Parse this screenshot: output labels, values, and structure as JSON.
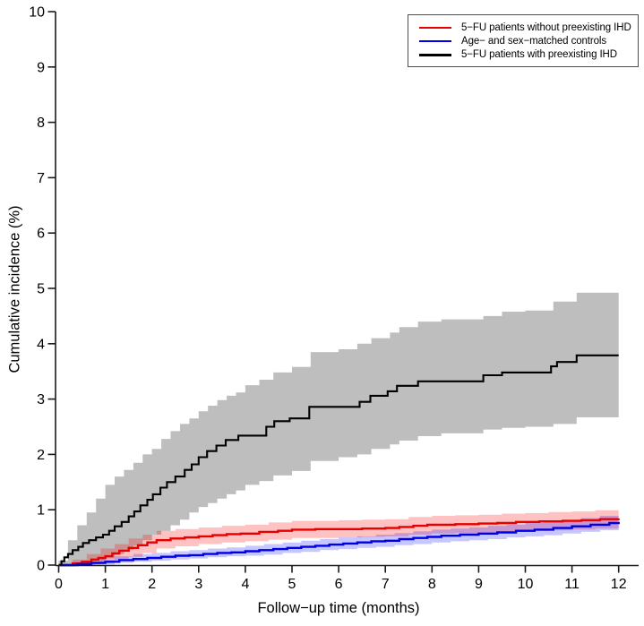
{
  "figure_title": "",
  "chart_data": {
    "type": "line",
    "subtype": "step-cumulative-incidence",
    "title": "",
    "xlabel": "Follow−up time (months)",
    "ylabel": "Cumulative incidence (%)",
    "xlim": [
      0,
      12
    ],
    "ylim": [
      0,
      10
    ],
    "x_ticks": [
      0,
      1,
      2,
      3,
      4,
      5,
      6,
      7,
      8,
      9,
      10,
      11,
      12
    ],
    "y_ticks": [
      0,
      1,
      2,
      3,
      4,
      5,
      6,
      7,
      8,
      9,
      10
    ],
    "grid": false,
    "legend_position": "top-right",
    "legend_border_color": "#4d4d4d",
    "axis_color": "#1a1a1a",
    "series": [
      {
        "key": "red",
        "name": "5−FU patients without preexisting IHD",
        "color": "#e60000",
        "band_color": "rgba(255,0,0,0.24)",
        "line_width": 2.4,
        "points": [
          [
            0,
            0
          ],
          [
            0.3,
            0.03
          ],
          [
            0.5,
            0.06
          ],
          [
            0.7,
            0.1
          ],
          [
            0.85,
            0.13
          ],
          [
            1.0,
            0.16
          ],
          [
            1.15,
            0.21
          ],
          [
            1.3,
            0.26
          ],
          [
            1.5,
            0.31
          ],
          [
            1.7,
            0.36
          ],
          [
            1.9,
            0.41
          ],
          [
            2.1,
            0.45
          ],
          [
            2.4,
            0.48
          ],
          [
            2.7,
            0.5
          ],
          [
            3.0,
            0.52
          ],
          [
            3.3,
            0.54
          ],
          [
            3.6,
            0.56
          ],
          [
            3.9,
            0.57
          ],
          [
            4.3,
            0.6
          ],
          [
            4.7,
            0.62
          ],
          [
            5.0,
            0.64
          ],
          [
            5.5,
            0.65
          ],
          [
            6.5,
            0.66
          ],
          [
            7.0,
            0.67
          ],
          [
            7.3,
            0.69
          ],
          [
            7.6,
            0.71
          ],
          [
            7.9,
            0.73
          ],
          [
            8.5,
            0.74
          ],
          [
            9.0,
            0.75
          ],
          [
            9.4,
            0.76
          ],
          [
            9.8,
            0.78
          ],
          [
            10.3,
            0.79
          ],
          [
            10.8,
            0.8
          ],
          [
            11.2,
            0.81
          ],
          [
            11.6,
            0.83
          ],
          [
            12,
            0.84
          ]
        ],
        "band": [
          [
            0,
            0,
            0.02
          ],
          [
            0.3,
            0,
            0.1
          ],
          [
            0.6,
            0.01,
            0.2
          ],
          [
            0.9,
            0.04,
            0.3
          ],
          [
            1.2,
            0.08,
            0.38
          ],
          [
            1.5,
            0.15,
            0.48
          ],
          [
            1.8,
            0.22,
            0.55
          ],
          [
            2.1,
            0.3,
            0.62
          ],
          [
            2.5,
            0.34,
            0.65
          ],
          [
            3.0,
            0.38,
            0.68
          ],
          [
            3.5,
            0.41,
            0.71
          ],
          [
            4.0,
            0.43,
            0.73
          ],
          [
            4.5,
            0.46,
            0.77
          ],
          [
            5.0,
            0.49,
            0.8
          ],
          [
            6.0,
            0.5,
            0.81
          ],
          [
            6.5,
            0.51,
            0.82
          ],
          [
            7.0,
            0.52,
            0.83
          ],
          [
            7.5,
            0.55,
            0.87
          ],
          [
            8.0,
            0.57,
            0.89
          ],
          [
            8.5,
            0.58,
            0.9
          ],
          [
            9.0,
            0.59,
            0.91
          ],
          [
            9.5,
            0.6,
            0.93
          ],
          [
            10.0,
            0.62,
            0.94
          ],
          [
            10.5,
            0.63,
            0.96
          ],
          [
            11.0,
            0.64,
            0.97
          ],
          [
            11.5,
            0.66,
            0.99
          ],
          [
            12,
            0.67,
            1.01
          ]
        ]
      },
      {
        "key": "blue",
        "name": "Age− and sex−matched controls",
        "color": "#0000e6",
        "band_color": "rgba(0,0,255,0.22)",
        "line_width": 2.4,
        "points": [
          [
            0,
            0
          ],
          [
            0.4,
            0.02
          ],
          [
            0.7,
            0.04
          ],
          [
            1.0,
            0.06
          ],
          [
            1.3,
            0.09
          ],
          [
            1.6,
            0.11
          ],
          [
            1.9,
            0.13
          ],
          [
            2.2,
            0.15
          ],
          [
            2.5,
            0.17
          ],
          [
            2.8,
            0.18
          ],
          [
            3.1,
            0.2
          ],
          [
            3.4,
            0.22
          ],
          [
            3.7,
            0.23
          ],
          [
            4.0,
            0.25
          ],
          [
            4.3,
            0.27
          ],
          [
            4.6,
            0.29
          ],
          [
            4.9,
            0.31
          ],
          [
            5.2,
            0.33
          ],
          [
            5.5,
            0.35
          ],
          [
            5.8,
            0.37
          ],
          [
            6.1,
            0.39
          ],
          [
            6.4,
            0.41
          ],
          [
            6.7,
            0.43
          ],
          [
            7.0,
            0.44
          ],
          [
            7.3,
            0.47
          ],
          [
            7.6,
            0.49
          ],
          [
            7.9,
            0.51
          ],
          [
            8.2,
            0.53
          ],
          [
            8.6,
            0.55
          ],
          [
            9.0,
            0.57
          ],
          [
            9.4,
            0.59
          ],
          [
            9.8,
            0.62
          ],
          [
            10.2,
            0.64
          ],
          [
            10.6,
            0.67
          ],
          [
            11.0,
            0.7
          ],
          [
            11.4,
            0.73
          ],
          [
            11.8,
            0.76
          ],
          [
            12,
            0.78
          ]
        ],
        "band": [
          [
            0,
            0,
            0.01
          ],
          [
            0.4,
            0,
            0.05
          ],
          [
            0.8,
            0.01,
            0.1
          ],
          [
            1.2,
            0.04,
            0.16
          ],
          [
            1.6,
            0.06,
            0.2
          ],
          [
            2.0,
            0.08,
            0.22
          ],
          [
            2.4,
            0.1,
            0.25
          ],
          [
            2.8,
            0.12,
            0.27
          ],
          [
            3.2,
            0.14,
            0.3
          ],
          [
            3.6,
            0.16,
            0.32
          ],
          [
            4.0,
            0.17,
            0.35
          ],
          [
            4.4,
            0.19,
            0.38
          ],
          [
            4.8,
            0.22,
            0.41
          ],
          [
            5.2,
            0.24,
            0.44
          ],
          [
            5.6,
            0.27,
            0.47
          ],
          [
            6.0,
            0.29,
            0.5
          ],
          [
            6.4,
            0.31,
            0.52
          ],
          [
            6.8,
            0.33,
            0.55
          ],
          [
            7.2,
            0.36,
            0.58
          ],
          [
            7.6,
            0.38,
            0.61
          ],
          [
            8.0,
            0.41,
            0.64
          ],
          [
            8.4,
            0.43,
            0.66
          ],
          [
            8.8,
            0.45,
            0.68
          ],
          [
            9.2,
            0.47,
            0.71
          ],
          [
            9.6,
            0.5,
            0.73
          ],
          [
            10.0,
            0.52,
            0.76
          ],
          [
            10.4,
            0.54,
            0.78
          ],
          [
            10.8,
            0.57,
            0.81
          ],
          [
            11.2,
            0.6,
            0.85
          ],
          [
            11.6,
            0.63,
            0.89
          ],
          [
            12,
            0.65,
            0.93
          ]
        ]
      },
      {
        "key": "black",
        "name": "5−FU patients with preexisting IHD",
        "color": "#000000",
        "band_color": "#bebebe",
        "line_width": 2.1,
        "points": [
          [
            0,
            0
          ],
          [
            0.06,
            0.07
          ],
          [
            0.12,
            0.14
          ],
          [
            0.2,
            0.2
          ],
          [
            0.3,
            0.27
          ],
          [
            0.42,
            0.33
          ],
          [
            0.52,
            0.4
          ],
          [
            0.65,
            0.45
          ],
          [
            0.8,
            0.5
          ],
          [
            0.95,
            0.55
          ],
          [
            1.08,
            0.62
          ],
          [
            1.2,
            0.7
          ],
          [
            1.35,
            0.78
          ],
          [
            1.5,
            0.88
          ],
          [
            1.62,
            0.97
          ],
          [
            1.75,
            1.08
          ],
          [
            1.9,
            1.18
          ],
          [
            2.02,
            1.28
          ],
          [
            2.18,
            1.4
          ],
          [
            2.32,
            1.5
          ],
          [
            2.5,
            1.6
          ],
          [
            2.7,
            1.72
          ],
          [
            2.85,
            1.82
          ],
          [
            3.0,
            1.95
          ],
          [
            3.18,
            2.06
          ],
          [
            3.38,
            2.16
          ],
          [
            3.58,
            2.26
          ],
          [
            3.85,
            2.34
          ],
          [
            4.45,
            2.5
          ],
          [
            4.62,
            2.6
          ],
          [
            4.95,
            2.65
          ],
          [
            5.37,
            2.86
          ],
          [
            6.45,
            2.95
          ],
          [
            6.68,
            3.06
          ],
          [
            7.05,
            3.14
          ],
          [
            7.25,
            3.24
          ],
          [
            7.7,
            3.32
          ],
          [
            9.1,
            3.43
          ],
          [
            9.5,
            3.48
          ],
          [
            10.55,
            3.59
          ],
          [
            10.68,
            3.67
          ],
          [
            11.1,
            3.79
          ],
          [
            12,
            3.79
          ]
        ],
        "band": [
          [
            0,
            0,
            0.08
          ],
          [
            0.2,
            0.02,
            0.45
          ],
          [
            0.4,
            0.04,
            0.72
          ],
          [
            0.6,
            0.06,
            0.95
          ],
          [
            0.8,
            0.09,
            1.2
          ],
          [
            1.0,
            0.12,
            1.45
          ],
          [
            1.2,
            0.2,
            1.6
          ],
          [
            1.4,
            0.28,
            1.72
          ],
          [
            1.6,
            0.35,
            1.85
          ],
          [
            1.8,
            0.45,
            2.0
          ],
          [
            2.0,
            0.55,
            2.1
          ],
          [
            2.2,
            0.62,
            2.28
          ],
          [
            2.4,
            0.72,
            2.42
          ],
          [
            2.6,
            0.82,
            2.55
          ],
          [
            2.8,
            0.95,
            2.65
          ],
          [
            3.0,
            1.05,
            2.78
          ],
          [
            3.2,
            1.12,
            2.88
          ],
          [
            3.4,
            1.2,
            2.98
          ],
          [
            3.6,
            1.28,
            3.06
          ],
          [
            3.8,
            1.35,
            3.12
          ],
          [
            4.0,
            1.45,
            3.25
          ],
          [
            4.3,
            1.52,
            3.35
          ],
          [
            4.6,
            1.62,
            3.48
          ],
          [
            5.0,
            1.7,
            3.58
          ],
          [
            5.4,
            1.88,
            3.85
          ],
          [
            6.0,
            1.95,
            3.9
          ],
          [
            6.4,
            2.0,
            4.0
          ],
          [
            6.7,
            2.1,
            4.1
          ],
          [
            7.1,
            2.18,
            4.2
          ],
          [
            7.3,
            2.25,
            4.3
          ],
          [
            7.7,
            2.33,
            4.4
          ],
          [
            8.2,
            2.38,
            4.44
          ],
          [
            9.1,
            2.45,
            4.5
          ],
          [
            9.5,
            2.48,
            4.58
          ],
          [
            10.0,
            2.5,
            4.6
          ],
          [
            10.6,
            2.55,
            4.76
          ],
          [
            11.1,
            2.67,
            4.92
          ],
          [
            12,
            2.67,
            4.92
          ]
        ]
      }
    ]
  }
}
